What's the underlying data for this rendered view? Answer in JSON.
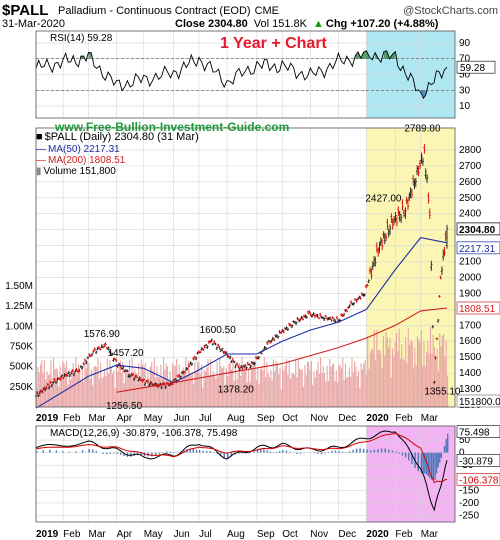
{
  "header": {
    "symbol": "$PALL",
    "name": "Palladium - Continuous Contract (EOD)",
    "exchange": "CME",
    "watermark": "@StockCharts.com",
    "date": "31-Mar-2020",
    "close_text": "Close 2304.80",
    "vol_text": "Vol 151.8K",
    "chg_text": "Chg +107.20 (+4.88%)",
    "chg_arrow": "▲"
  },
  "rsi_label": "RSI(14) 59.28",
  "overlay_title": "1 Year + Chart",
  "site_url": "www.Free-Bullion-Investment-Guide.com",
  "legend": {
    "price": "$PALL (Daily) 2304.80 (31 Mar)",
    "ma50": "MA(50) 2217.31",
    "ma200": "MA(200) 1808.51",
    "volume": "Volume 151,800"
  },
  "macd_label": "MACD(12,26,9) -30.879, -106.378, 75.498",
  "x_labels": [
    "2019",
    "Feb",
    "Mar",
    "Apr",
    "May",
    "Jun",
    "Jul",
    "Aug",
    "Sep",
    "Oct",
    "Nov",
    "Dec",
    "2020",
    "Feb",
    "Mar"
  ],
  "colors": {
    "ma50": "#1c2fa8",
    "ma200": "#d02020",
    "up_bar": "#1a1a1a",
    "down_bar": "#d40000",
    "volume": "#e8a6a6",
    "rsi_fill": "#3e8a52",
    "cyan_highlight": "#aee6f2",
    "yellow_highlight": "#fbf6b4",
    "magenta_highlight": "#f2b4f2",
    "title_red": "#e8192c",
    "url_green": "#1f9a3a"
  },
  "chart_data": [
    {
      "type": "line",
      "panel": "RSI(14)",
      "x": [
        "2019-01-02",
        "2019-02-01",
        "2019-03-01",
        "2019-04-01",
        "2019-05-01",
        "2019-06-03",
        "2019-07-01",
        "2019-08-01",
        "2019-09-03",
        "2019-10-01",
        "2019-11-01",
        "2019-12-02",
        "2020-01-02",
        "2020-02-03",
        "2020-03-02",
        "2020-03-31"
      ],
      "values": [
        58,
        66,
        72,
        36,
        44,
        52,
        70,
        40,
        62,
        60,
        48,
        66,
        76,
        72,
        24,
        59.28
      ],
      "ylim": [
        0,
        100
      ],
      "ticks": [
        10,
        30,
        50,
        70,
        90
      ],
      "reference_lines": [
        30,
        70
      ],
      "last_value": "59.28"
    },
    {
      "type": "line",
      "panel": "Price",
      "x_labels": [
        "2019",
        "Feb",
        "Mar",
        "Apr",
        "May",
        "Jun",
        "Jul",
        "Aug",
        "Sep",
        "Oct",
        "Nov",
        "Dec",
        "2020",
        "Feb",
        "Mar"
      ],
      "series": [
        {
          "name": "$PALL (Daily)",
          "x": [
            "2019-01-02",
            "2019-01-18",
            "2019-02-01",
            "2019-02-19",
            "2019-03-05",
            "2019-03-20",
            "2019-04-02",
            "2019-04-16",
            "2019-05-01",
            "2019-05-15",
            "2019-05-31",
            "2019-06-17",
            "2019-07-01",
            "2019-07-15",
            "2019-07-31",
            "2019-08-15",
            "2019-08-30",
            "2019-09-16",
            "2019-10-01",
            "2019-10-15",
            "2019-10-31",
            "2019-11-15",
            "2019-12-02",
            "2019-12-16",
            "2019-12-31",
            "2020-01-15",
            "2020-01-31",
            "2020-02-14",
            "2020-02-27",
            "2020-03-06",
            "2020-03-12",
            "2020-03-17",
            "2020-03-24",
            "2020-03-31"
          ],
          "values": [
            1256.5,
            1330,
            1380,
            1420,
            1530,
            1576.9,
            1457.2,
            1390,
            1350,
            1320,
            1330,
            1420,
            1530,
            1600.5,
            1520,
            1430,
            1460,
            1590,
            1660,
            1720,
            1770,
            1750,
            1730,
            1830,
            1900,
            2180,
            2350,
            2427,
            2650,
            2789.8,
            2400,
            1355.1,
            2000,
            2304.8
          ]
        },
        {
          "name": "MA(50)",
          "x": [
            "2019-01-02",
            "2019-03-01",
            "2019-04-01",
            "2019-05-01",
            "2019-06-03",
            "2019-07-01",
            "2019-08-01",
            "2019-09-03",
            "2019-10-01",
            "2019-11-01",
            "2019-12-02",
            "2020-01-02",
            "2020-02-03",
            "2020-03-02",
            "2020-03-31"
          ],
          "values": [
            1180,
            1380,
            1450,
            1430,
            1340,
            1420,
            1520,
            1520,
            1600,
            1670,
            1720,
            1800,
            2050,
            2250,
            2217.31
          ]
        },
        {
          "name": "MA(200)",
          "x": [
            "2019-04-01",
            "2019-06-03",
            "2019-08-01",
            "2019-10-01",
            "2019-12-02",
            "2020-01-02",
            "2020-02-03",
            "2020-03-02",
            "2020-03-31"
          ],
          "values": [
            1280,
            1340,
            1400,
            1460,
            1560,
            1620,
            1700,
            1790,
            1808.51
          ]
        }
      ],
      "ylim": [
        1200,
        2900
      ],
      "y_ticks": [
        1200,
        1300,
        1400,
        1500,
        1600,
        1700,
        1800,
        1900,
        2000,
        2100,
        2200,
        2300,
        2400,
        2500,
        2600,
        2700,
        2800
      ],
      "annotations": [
        {
          "label": "1576.90",
          "x": "2019-03-20",
          "y": 1576.9
        },
        {
          "label": "1457.20",
          "x": "2019-04-02",
          "y": 1457.2
        },
        {
          "label": "1256.50",
          "x": "2019-01-02",
          "y": 1256.5
        },
        {
          "label": "1600.50",
          "x": "2019-07-15",
          "y": 1600.5
        },
        {
          "label": "1378.20",
          "x": "2019-08-15",
          "y": 1378.2
        },
        {
          "label": "2427.00",
          "x": "2020-02-14",
          "y": 2427.0
        },
        {
          "label": "2789.80",
          "x": "2020-03-06",
          "y": 2789.8
        },
        {
          "label": "1355.10",
          "x": "2020-03-17",
          "y": 1355.1
        }
      ],
      "right_labels": [
        "2304.80",
        "2217.31",
        "1808.51",
        "151800.0"
      ]
    },
    {
      "type": "bar",
      "panel": "Volume",
      "y_ticks_labels": [
        "250K",
        "500K",
        "750K",
        "1.00M",
        "1.25M",
        "1.50M"
      ],
      "y_ticks": [
        250000,
        500000,
        750000,
        1000000,
        1250000,
        1500000
      ],
      "ylim": [
        0,
        1600000
      ],
      "last_value": 151800
    },
    {
      "type": "line",
      "panel": "MACD(12,26,9)",
      "series": [
        {
          "name": "MACD",
          "x": [
            "2019-01-02",
            "2019-03-01",
            "2019-04-01",
            "2019-05-01",
            "2019-06-03",
            "2019-07-01",
            "2019-08-01",
            "2019-09-03",
            "2019-10-01",
            "2019-11-01",
            "2019-12-02",
            "2020-01-02",
            "2020-02-03",
            "2020-03-02",
            "2020-03-17",
            "2020-03-31"
          ],
          "values": [
            20,
            40,
            10,
            -20,
            -10,
            40,
            -20,
            20,
            30,
            10,
            20,
            60,
            90,
            -60,
            -230,
            -30.879
          ]
        },
        {
          "name": "Signal",
          "x": [
            "2019-01-02",
            "2019-03-01",
            "2019-04-01",
            "2019-05-01",
            "2019-06-03",
            "2019-07-01",
            "2019-08-01",
            "2019-09-03",
            "2019-10-01",
            "2019-11-01",
            "2019-12-02",
            "2020-01-02",
            "2020-02-03",
            "2020-03-02",
            "2020-03-17",
            "2020-03-31"
          ],
          "values": [
            15,
            30,
            20,
            -5,
            -15,
            25,
            0,
            10,
            25,
            15,
            15,
            45,
            80,
            20,
            -120,
            -106.378
          ]
        },
        {
          "name": "Histogram",
          "last_value": 75.498
        }
      ],
      "ylim": [
        -260,
        90
      ],
      "y_ticks": [
        -250,
        -200,
        -150,
        -100,
        -50,
        0,
        50
      ],
      "right_labels": [
        "75.498",
        "-30.879",
        "-106.378"
      ]
    }
  ]
}
